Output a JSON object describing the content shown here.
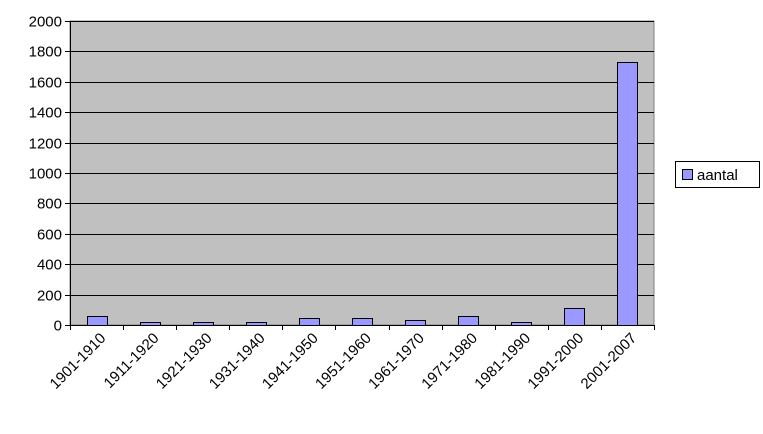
{
  "chart_data": {
    "type": "bar",
    "title": "",
    "xlabel": "",
    "ylabel": "",
    "categories": [
      "1901-1910",
      "1911-1920",
      "1921-1930",
      "1931-1940",
      "1941-1950",
      "1951-1960",
      "1961-1970",
      "1971-1980",
      "1981-1990",
      "1991-2000",
      "2001-2007"
    ],
    "series": [
      {
        "name": "aantal",
        "values": [
          60,
          20,
          20,
          20,
          45,
          45,
          35,
          60,
          20,
          115,
          1730
        ]
      }
    ],
    "ylim": [
      0,
      2000
    ],
    "yticks": [
      "0",
      "200",
      "400",
      "600",
      "800",
      "1000",
      "1200",
      "1400",
      "1600",
      "1800",
      "2000"
    ],
    "grid": "horizontal",
    "legend_position": "right",
    "colors": {
      "plot_background": "#c0c0c0",
      "bar_fill": "#9999ff",
      "bar_stroke": "#000000",
      "gridline": "#000000"
    }
  }
}
